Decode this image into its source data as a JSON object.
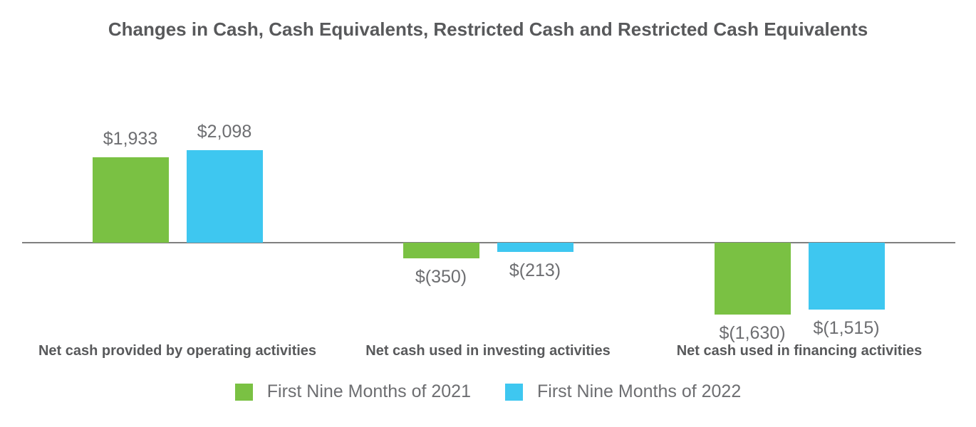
{
  "title": "Changes in Cash, Cash Equivalents, Restricted Cash and Restricted Cash Equivalents",
  "colors": {
    "series_2021": "#7AC143",
    "series_2022": "#3EC7F0",
    "axis_line": "#808080",
    "title_text": "#58595B",
    "category_text": "#58595B",
    "value_text": "#6D6E71",
    "background": "#FFFFFF"
  },
  "chart_data": {
    "type": "bar",
    "title": "Changes in Cash, Cash Equivalents, Restricted Cash and Restricted Cash Equivalents",
    "categories": [
      "Net cash provided by operating activities",
      "Net cash used in investing activities",
      "Net cash used in financing activities"
    ],
    "series": [
      {
        "name": "First Nine Months of 2021",
        "color_key": "series_2021",
        "values": [
          1933,
          -350,
          -1630
        ],
        "labels": [
          "$1,933",
          "$(350)",
          "$(1,630)"
        ]
      },
      {
        "name": "First Nine Months of 2022",
        "color_key": "series_2022",
        "values": [
          2098,
          -213,
          -1515
        ],
        "labels": [
          "$2,098",
          "$(213)",
          "$(1,515)"
        ]
      }
    ],
    "ylim": [
      -1700,
      2200
    ],
    "xlabel": "",
    "ylabel": "",
    "grid": false,
    "axis_style": "zero-baseline-only",
    "legend_position": "bottom",
    "value_label_format": "currency-parentheses-negative"
  }
}
